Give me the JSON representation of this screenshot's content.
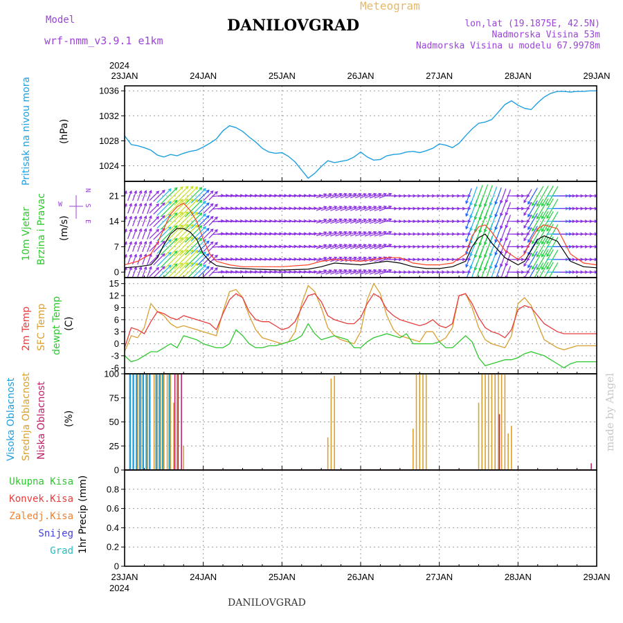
{
  "header": {
    "title": "DANILOVGRAD",
    "subtitle": "Meteogram",
    "model_label": "Model",
    "model_name": "wrf-nmm_v3.9.1 e1km",
    "coords": "lon,lat (19.1875E, 42.5N)",
    "elevation": "Nadmorska Visina 53m",
    "model_elevation": "Nadmorska Visina u modelu 67.9978m",
    "credit": "made by Angel",
    "footer_title": "DANILOVGRAD"
  },
  "colors": {
    "pressure": "#1e9fe0",
    "temp2m": "#e83c3c",
    "sfc": "#d9a030",
    "dewpt": "#2ec82e",
    "high_cloud": "#1e9fe0",
    "mid_cloud": "#d9a030",
    "low_cloud": "#c0206a",
    "wind_line": "#000000",
    "gust_line": "#ff4020",
    "label_purple": "#9a44d8"
  },
  "chart_data": [
    {
      "type": "line",
      "panel": "pressure",
      "ylabel": [
        "Pritisak na nivou mora",
        "(hPa)"
      ],
      "ylim": [
        1021.5,
        1036.8
      ],
      "yticks": [
        1024,
        1028,
        1032,
        1036
      ],
      "x_hours": [
        0,
        2,
        4,
        6,
        8,
        10,
        12,
        14,
        16,
        18,
        20,
        22,
        24,
        26,
        28,
        30,
        32,
        34,
        36,
        38,
        40,
        42,
        44,
        46,
        48,
        50,
        52,
        54,
        56,
        58,
        60,
        62,
        64,
        66,
        68,
        70,
        72,
        74,
        76,
        78,
        80,
        82,
        84,
        86,
        88,
        90,
        92,
        94,
        96,
        98,
        100,
        102,
        104,
        106,
        108,
        110,
        112,
        114,
        116,
        118,
        120,
        122,
        124,
        126,
        128,
        130,
        132,
        134,
        136,
        138,
        140,
        142,
        144
      ],
      "values": [
        1028.8,
        1027.4,
        1027.2,
        1026.9,
        1026.5,
        1025.7,
        1025.4,
        1025.8,
        1025.6,
        1026.0,
        1026.3,
        1026.5,
        1027.0,
        1027.6,
        1028.3,
        1029.6,
        1030.4,
        1030.1,
        1029.5,
        1028.6,
        1027.8,
        1026.8,
        1026.2,
        1026.0,
        1026.1,
        1025.5,
        1024.6,
        1023.3,
        1022.0,
        1022.8,
        1023.9,
        1024.8,
        1024.5,
        1024.7,
        1024.9,
        1025.4,
        1026.2,
        1025.4,
        1024.9,
        1025.0,
        1025.6,
        1025.8,
        1025.9,
        1026.2,
        1026.3,
        1026.1,
        1026.4,
        1026.8,
        1027.5,
        1027.3,
        1026.9,
        1027.6,
        1028.8,
        1029.9,
        1030.8,
        1031.0,
        1031.4,
        1032.6,
        1033.8,
        1034.4,
        1033.7,
        1033.2,
        1033.0,
        1034.1,
        1035.0,
        1035.6,
        1035.9,
        1035.9,
        1035.8,
        1035.9,
        1035.9,
        1036.0,
        1036.0
      ]
    },
    {
      "type": "line",
      "panel": "wind",
      "ylabel": [
        "10m Vjetar",
        "Brzina i Pravac",
        "(m/s)"
      ],
      "ylim": [
        -1.5,
        25
      ],
      "yticks": [
        0,
        7,
        14,
        21
      ],
      "compass": [
        "N",
        "E",
        "S",
        "W"
      ],
      "x_hours": [
        0,
        4,
        8,
        10,
        12,
        14,
        16,
        18,
        20,
        22,
        24,
        26,
        28,
        32,
        36,
        40,
        48,
        56,
        60,
        64,
        72,
        80,
        84,
        88,
        92,
        96,
        100,
        104,
        106,
        108,
        110,
        112,
        116,
        120,
        122,
        124,
        126,
        128,
        132,
        136,
        140,
        144
      ],
      "speed": [
        1.2,
        1.5,
        2.0,
        4.0,
        7.5,
        10.5,
        12.0,
        12.0,
        11.0,
        9.0,
        5.0,
        3.0,
        1.8,
        1.2,
        1.0,
        0.8,
        0.6,
        0.8,
        1.5,
        2.5,
        2.0,
        3.0,
        2.5,
        1.5,
        1.0,
        1.0,
        1.5,
        3.0,
        7.0,
        9.5,
        10.5,
        8.0,
        4.0,
        2.0,
        3.0,
        6.0,
        9.0,
        10.0,
        8.5,
        3.0,
        1.5,
        1.2
      ],
      "gust": [
        2.0,
        3.0,
        5.0,
        8.0,
        12.0,
        16.0,
        18.0,
        19.0,
        17.0,
        14.0,
        9.0,
        5.0,
        3.0,
        2.0,
        1.5,
        1.5,
        1.5,
        2.0,
        3.0,
        3.5,
        3.0,
        4.0,
        4.0,
        2.5,
        2.0,
        2.0,
        2.5,
        5.0,
        10.0,
        12.5,
        13.0,
        11.0,
        6.0,
        3.5,
        5.0,
        9.0,
        12.0,
        13.0,
        12.0,
        5.0,
        2.5,
        2.0
      ],
      "arrow_rows": [
        0,
        3.5,
        7,
        10.5,
        14,
        17.5,
        21
      ],
      "direction_code": [
        {
          "from_h": 0,
          "to_h": 8,
          "deg": 200
        },
        {
          "from_h": 8,
          "to_h": 28,
          "deg": 225
        },
        {
          "from_h": 28,
          "to_h": 60,
          "deg": 265
        },
        {
          "from_h": 60,
          "to_h": 80,
          "deg": 250
        },
        {
          "from_h": 80,
          "to_h": 104,
          "deg": 270
        },
        {
          "from_h": 104,
          "to_h": 118,
          "deg": 20
        },
        {
          "from_h": 118,
          "to_h": 122,
          "deg": 270
        },
        {
          "from_h": 122,
          "to_h": 132,
          "deg": 30
        },
        {
          "from_h": 132,
          "to_h": 145,
          "deg": 270
        }
      ]
    },
    {
      "type": "line",
      "panel": "temperature",
      "ylabel": [
        "2m Temp",
        "SFC Temp",
        "dewpt Temp",
        "(C)"
      ],
      "ylim": [
        -7.5,
        16.5
      ],
      "yticks": [
        -6,
        -3,
        0,
        3,
        6,
        9,
        12,
        15
      ],
      "x_hours": [
        0,
        2,
        4,
        6,
        8,
        10,
        12,
        14,
        16,
        18,
        20,
        22,
        24,
        26,
        28,
        30,
        32,
        34,
        36,
        38,
        40,
        42,
        44,
        46,
        48,
        50,
        52,
        54,
        56,
        58,
        60,
        62,
        64,
        66,
        68,
        70,
        72,
        74,
        76,
        78,
        80,
        82,
        84,
        86,
        88,
        90,
        92,
        94,
        96,
        98,
        100,
        102,
        104,
        106,
        108,
        110,
        112,
        114,
        116,
        118,
        120,
        122,
        124,
        126,
        128,
        130,
        132,
        134,
        136,
        138,
        140,
        142,
        144
      ],
      "series": [
        {
          "name": "2m Temp",
          "values": [
            -1.0,
            4.0,
            3.5,
            2.5,
            5.5,
            8.0,
            7.5,
            6.5,
            6.0,
            7.0,
            6.5,
            6.0,
            5.5,
            5.0,
            3.5,
            7.5,
            11.0,
            12.5,
            11.5,
            8.0,
            6.0,
            5.5,
            5.5,
            4.5,
            3.5,
            4.0,
            5.5,
            9.0,
            12.0,
            12.5,
            10.5,
            7.0,
            6.0,
            5.5,
            5.0,
            5.0,
            6.5,
            10.0,
            12.5,
            11.5,
            8.5,
            7.0,
            6.0,
            5.5,
            5.0,
            4.5,
            5.0,
            6.0,
            4.5,
            4.0,
            5.0,
            12.0,
            12.5,
            10.0,
            6.5,
            4.0,
            3.0,
            2.5,
            1.5,
            3.5,
            8.5,
            9.5,
            9.0,
            7.0,
            5.0,
            4.0,
            3.0,
            2.5,
            2.5,
            2.5,
            2.5,
            2.5,
            2.5
          ]
        },
        {
          "name": "SFC Temp",
          "values": [
            -2.0,
            2.0,
            1.5,
            4.0,
            10.0,
            8.0,
            7.0,
            5.0,
            4.0,
            4.5,
            4.0,
            3.5,
            3.0,
            2.5,
            2.0,
            8.0,
            13.0,
            13.5,
            11.5,
            7.0,
            3.5,
            1.5,
            1.0,
            0.5,
            0.0,
            0.5,
            3.0,
            10.0,
            14.5,
            13.0,
            9.0,
            4.0,
            2.0,
            1.0,
            0.5,
            0.0,
            3.0,
            11.0,
            15.0,
            12.5,
            7.0,
            3.5,
            2.0,
            1.5,
            1.0,
            0.5,
            3.0,
            3.0,
            0.5,
            1.5,
            4.0,
            12.0,
            12.5,
            9.0,
            4.0,
            1.0,
            0.0,
            -0.5,
            -1.0,
            2.0,
            10.0,
            11.5,
            9.5,
            5.0,
            1.0,
            0.0,
            -1.0,
            -1.5,
            -1.0,
            -0.5,
            -0.5,
            -0.5,
            -0.5
          ]
        },
        {
          "name": "dewpt Temp",
          "values": [
            -3.0,
            -4.5,
            -4.0,
            -3.0,
            -2.0,
            -2.0,
            -1.0,
            0.0,
            -1.0,
            2.0,
            1.5,
            1.0,
            0.0,
            -0.5,
            -1.0,
            -1.0,
            0.0,
            3.5,
            2.0,
            0.0,
            -1.0,
            -1.0,
            -0.5,
            -0.5,
            0.0,
            0.5,
            1.0,
            2.0,
            5.0,
            2.5,
            1.0,
            1.5,
            2.0,
            1.5,
            1.0,
            -1.0,
            -1.0,
            0.5,
            1.5,
            2.0,
            2.5,
            2.0,
            1.5,
            2.5,
            0.0,
            0.0,
            0.0,
            0.0,
            0.5,
            -1.0,
            -1.0,
            0.5,
            2.0,
            0.5,
            -3.5,
            -5.5,
            -5.0,
            -4.5,
            -4.0,
            -4.0,
            -3.5,
            -2.5,
            -2.0,
            -2.5,
            -3.0,
            -4.0,
            -5.0,
            -6.0,
            -5.0,
            -4.5,
            -4.5,
            -4.5,
            -4.5
          ]
        }
      ]
    },
    {
      "type": "bar",
      "panel": "cloud",
      "ylabel": [
        "Visoka Oblacnost",
        "Srednja Oblacnost",
        "Niska Oblacnost",
        "(%)"
      ],
      "ylim": [
        0,
        100
      ],
      "yticks": [
        0,
        25,
        50,
        75,
        100
      ],
      "series": [
        {
          "name": "Visoka Oblacnost",
          "hours": [
            2,
            3,
            4,
            5,
            6,
            7,
            8,
            10,
            11,
            12,
            14
          ],
          "values": [
            100,
            100,
            100,
            100,
            100,
            100,
            100,
            100,
            100,
            100,
            100
          ]
        },
        {
          "name": "Srednja Oblacnost",
          "hours": [
            4,
            5,
            7,
            9,
            10,
            11,
            12,
            13,
            14,
            15,
            16,
            18,
            62,
            63,
            64,
            88,
            89,
            90,
            91,
            92,
            108,
            109,
            110,
            111,
            112,
            113,
            114,
            115,
            116,
            117,
            118
          ],
          "values": [
            100,
            100,
            100,
            100,
            100,
            100,
            100,
            100,
            100,
            70,
            100,
            25,
            34,
            95,
            98,
            43,
            100,
            100,
            100,
            100,
            70,
            100,
            100,
            100,
            100,
            100,
            100,
            100,
            100,
            38,
            46
          ]
        },
        {
          "name": "Niska Oblacnost",
          "hours": [
            15,
            16,
            17,
            114,
            142
          ],
          "values": [
            100,
            100,
            100,
            58,
            7
          ]
        }
      ]
    },
    {
      "type": "bar",
      "panel": "precip",
      "ylabel": [
        "1hr Precip (mm)"
      ],
      "legend": [
        "Ukupna Kisa",
        "Konvek.Kisa",
        "Zaledj.Kisa",
        "Snijeg",
        "Grad"
      ],
      "legend_colors": [
        "#2ec82e",
        "#e83c3c",
        "#f08030",
        "#4040e0",
        "#20c0c0"
      ],
      "ylim": [
        0,
        1.0
      ],
      "yticks": [
        0,
        0.2,
        0.4,
        0.6,
        0.8
      ],
      "ytick_labels": [
        "0",
        "0.2",
        "0.4",
        "0.6",
        "0.8"
      ],
      "values": []
    }
  ],
  "time_axis": {
    "year": "2024",
    "days": [
      "23JAN",
      "24JAN",
      "25JAN",
      "26JAN",
      "27JAN",
      "28JAN",
      "29JAN"
    ]
  }
}
